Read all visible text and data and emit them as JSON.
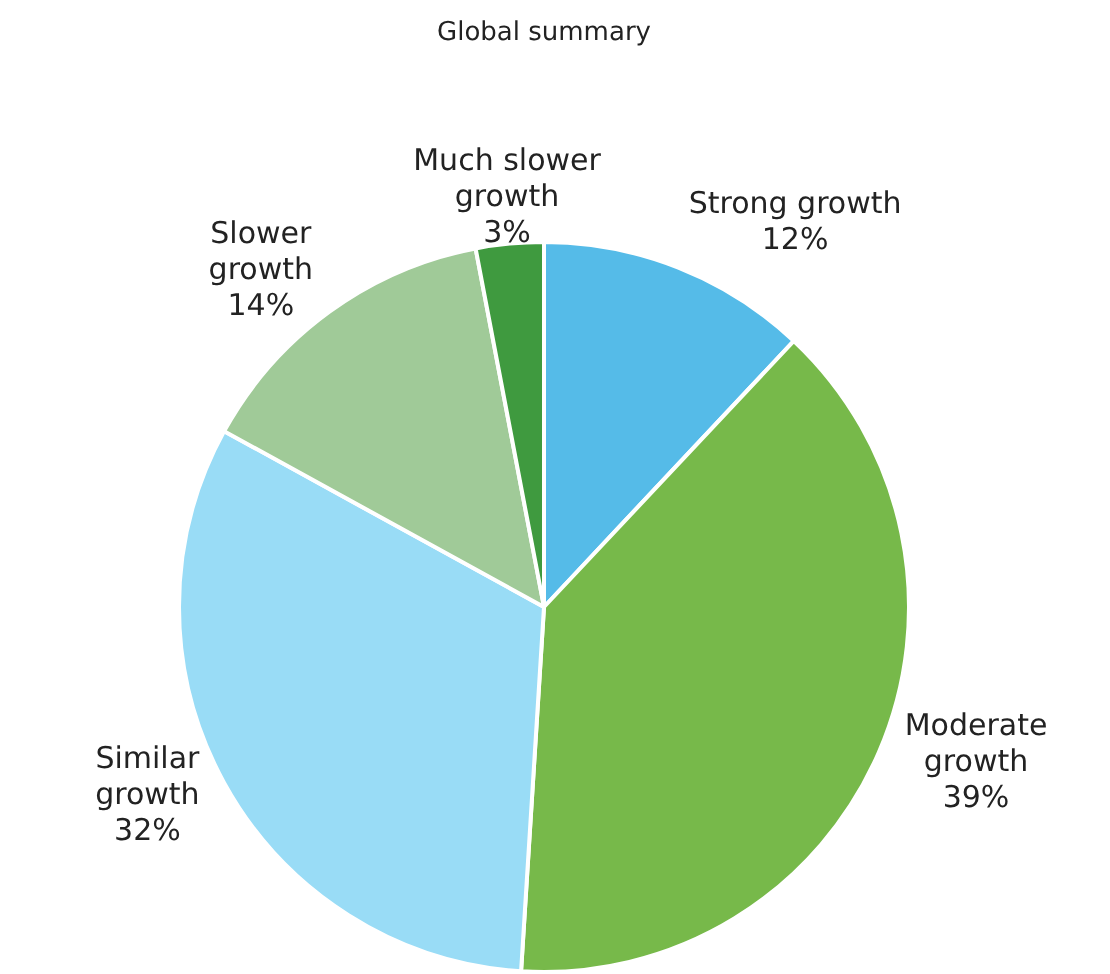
{
  "chart_data": {
    "type": "pie",
    "title": "Global summary",
    "categories": [
      "Strong growth",
      "Moderate growth",
      "Similar growth",
      "Slower growth",
      "Much slower growth"
    ],
    "values": [
      12,
      39,
      32,
      14,
      3
    ],
    "colors": [
      "#55bbe8",
      "#77b94a",
      "#99dcf6",
      "#a0ca98",
      "#3f9a3f"
    ],
    "value_labels": [
      "12%",
      "39%",
      "32%",
      "14%",
      "3%"
    ],
    "legend": false
  }
}
